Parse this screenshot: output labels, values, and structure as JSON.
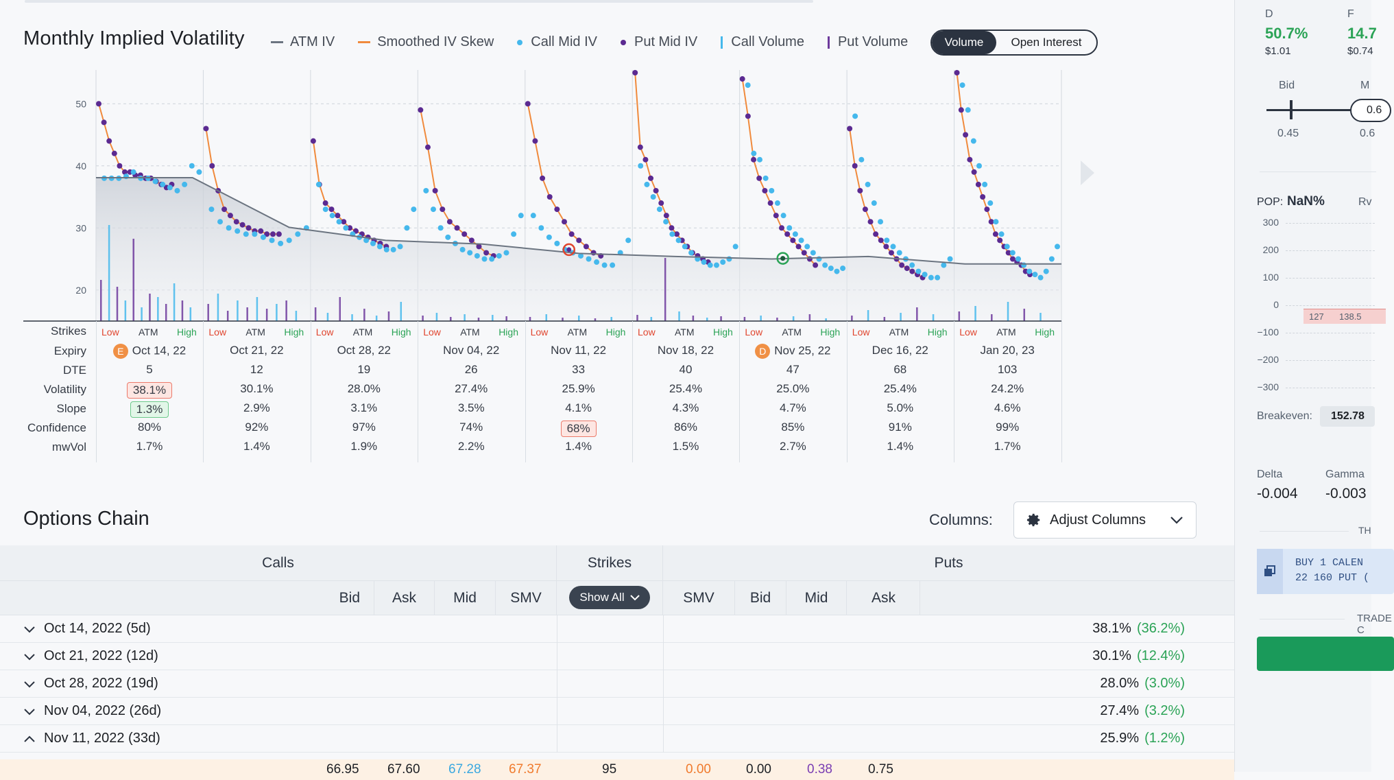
{
  "chart_header": {
    "title": "Monthly Implied Volatility",
    "legend": [
      {
        "label": "ATM IV",
        "kind": "line",
        "color": "#6b7480"
      },
      {
        "label": "Smoothed IV Skew",
        "kind": "line",
        "color": "#f08a3c"
      },
      {
        "label": "Call Mid IV",
        "kind": "dot",
        "color": "#45b8ec"
      },
      {
        "label": "Put Mid IV",
        "kind": "dot",
        "color": "#5b2a91"
      },
      {
        "label": "Call Volume",
        "kind": "bar",
        "color": "#45b8ec"
      },
      {
        "label": "Put Volume",
        "kind": "bar",
        "color": "#6d3a9c"
      }
    ],
    "toggle": {
      "volume": "Volume",
      "open_interest": "Open Interest",
      "selected": "Volume"
    }
  },
  "chart_data": {
    "type": "scatter",
    "y_ticks": [
      20,
      30,
      40,
      50
    ],
    "ylim": [
      15,
      55
    ],
    "grid": true,
    "expiries": [
      {
        "expiry": "Oct 14, 22",
        "atm_iv": 38.1,
        "call_iv": [
          38,
          38,
          38,
          38.3,
          39,
          38,
          38,
          37.5,
          37,
          36.5,
          36,
          37,
          40,
          39
        ],
        "put_iv": [
          50,
          47,
          44,
          42,
          40,
          39,
          39,
          38.5,
          38.5,
          38,
          38,
          37.5,
          37,
          36.5,
          37
        ]
      },
      {
        "expiry": "Oct 21, 22",
        "atm_iv": 30.1,
        "call_iv": [
          33,
          31,
          30,
          29.5,
          29,
          29,
          28.5,
          28,
          27.5,
          28,
          29,
          30
        ],
        "put_iv": [
          46,
          40,
          36,
          33,
          32,
          31,
          30.5,
          30,
          29.5,
          29.5,
          29,
          29,
          29
        ]
      },
      {
        "expiry": "Oct 28, 22",
        "atm_iv": 28.0,
        "call_iv": [
          37,
          33,
          32,
          31,
          30,
          29,
          28.5,
          28,
          27.5,
          27,
          26.5,
          26.5,
          27,
          30,
          33
        ],
        "put_iv": [
          44,
          37,
          34,
          33,
          32,
          31,
          30,
          29.5,
          29,
          28.5,
          28,
          27.5,
          27
        ]
      },
      {
        "expiry": "Nov 04, 22",
        "atm_iv": 27.4,
        "call_iv": [
          36,
          33,
          30,
          28.5,
          27.5,
          26.5,
          26,
          25.5,
          25,
          25,
          25.5,
          26,
          29,
          32
        ],
        "put_iv": [
          49,
          43,
          36,
          33,
          31,
          30,
          29,
          28,
          27,
          26,
          25.5
        ]
      },
      {
        "expiry": "Nov 11, 22",
        "atm_iv": 25.9,
        "call_iv": [
          32,
          30,
          28.5,
          27.5,
          26.5,
          26,
          25.5,
          25,
          24.5,
          24,
          24,
          26,
          28
        ],
        "put_iv": [
          50,
          44,
          38,
          35,
          33,
          31,
          29,
          28,
          27,
          26,
          25.5
        ]
      },
      {
        "expiry": "Nov 18, 22",
        "atm_iv": 25.4,
        "call_iv": [
          40,
          37,
          35,
          33,
          31,
          29,
          28,
          27,
          26,
          25,
          24.5,
          24,
          24,
          24.5,
          25,
          27
        ],
        "put_iv": [
          55,
          43,
          41,
          38,
          36,
          34,
          32,
          30,
          29,
          28,
          27,
          26,
          25.5,
          25,
          24.5
        ]
      },
      {
        "expiry": "Nov 25, 22",
        "atm_iv": 25.0,
        "call_iv": [
          53,
          42,
          41,
          38,
          36,
          34,
          32,
          30,
          29,
          28,
          27,
          26,
          25,
          24,
          23.5,
          23,
          23.5
        ],
        "put_iv": [
          54,
          48,
          41,
          38,
          36,
          34,
          32,
          30,
          29,
          28,
          27,
          26,
          25,
          24
        ]
      },
      {
        "expiry": "Dec 16, 22",
        "atm_iv": 25.4,
        "call_iv": [
          48,
          41,
          37,
          34,
          31,
          28,
          27,
          26,
          25,
          24,
          23,
          22.5,
          22,
          22,
          24,
          25
        ],
        "put_iv": [
          46,
          40,
          36,
          33,
          31,
          29,
          28,
          27,
          26,
          25,
          24,
          23.5,
          23,
          22.5,
          22
        ]
      },
      {
        "expiry": "Jan 20, 23",
        "atm_iv": 24.2,
        "call_iv": [
          53,
          49,
          44,
          40,
          37,
          34,
          31,
          29,
          27,
          26,
          25,
          24,
          23,
          22.5,
          22,
          23,
          25,
          27
        ],
        "put_iv": [
          55,
          49,
          45,
          41,
          39,
          37,
          35,
          33,
          31,
          29,
          28,
          27,
          26,
          25,
          24.5,
          24,
          23,
          22.5
        ]
      }
    ],
    "atm_line": [
      38.1,
      38.1,
      30.1,
      28.0,
      27.4,
      25.9,
      25.4,
      25.0,
      25.4,
      24.2,
      24.2
    ]
  },
  "table": {
    "row_labels": [
      "Strikes",
      "Expiry",
      "DTE",
      "Volatility",
      "Slope",
      "Confidence",
      "mwVol"
    ],
    "strike_labels": {
      "low": "Low",
      "atm": "ATM",
      "high": "High"
    },
    "columns": [
      {
        "expiry": "Oct 14, 22",
        "badge": "E",
        "dte": "5",
        "volatility": "38.1%",
        "slope": "1.3%",
        "confidence": "80%",
        "mwvol": "1.7%"
      },
      {
        "expiry": "Oct 21, 22",
        "badge": "",
        "dte": "12",
        "volatility": "30.1%",
        "slope": "2.9%",
        "confidence": "92%",
        "mwvol": "1.4%"
      },
      {
        "expiry": "Oct 28, 22",
        "badge": "",
        "dte": "19",
        "volatility": "28.0%",
        "slope": "3.1%",
        "confidence": "97%",
        "mwvol": "1.9%"
      },
      {
        "expiry": "Nov 04, 22",
        "badge": "",
        "dte": "26",
        "volatility": "27.4%",
        "slope": "3.5%",
        "confidence": "74%",
        "mwvol": "2.2%"
      },
      {
        "expiry": "Nov 11, 22",
        "badge": "",
        "dte": "33",
        "volatility": "25.9%",
        "slope": "4.1%",
        "confidence": "68%",
        "mwvol": "1.4%"
      },
      {
        "expiry": "Nov 18, 22",
        "badge": "",
        "dte": "40",
        "volatility": "25.4%",
        "slope": "4.3%",
        "confidence": "86%",
        "mwvol": "1.5%"
      },
      {
        "expiry": "Nov 25, 22",
        "badge": "D",
        "dte": "47",
        "volatility": "25.0%",
        "slope": "4.7%",
        "confidence": "85%",
        "mwvol": "2.7%"
      },
      {
        "expiry": "Dec 16, 22",
        "badge": "",
        "dte": "68",
        "volatility": "25.4%",
        "slope": "5.0%",
        "confidence": "91%",
        "mwvol": "1.4%"
      },
      {
        "expiry": "Jan 20, 23",
        "badge": "",
        "dte": "103",
        "volatility": "24.2%",
        "slope": "4.6%",
        "confidence": "99%",
        "mwvol": "1.7%"
      }
    ]
  },
  "options_chain": {
    "title": "Options Chain",
    "columns_label": "Columns:",
    "adjust_columns": "Adjust Columns",
    "headers": {
      "calls": "Calls",
      "strikes": "Strikes",
      "puts": "Puts"
    },
    "call_cols": [
      "Bid",
      "Ask",
      "Mid",
      "SMV"
    ],
    "put_cols": [
      "SMV",
      "Bid",
      "Mid",
      "Ask"
    ],
    "show_all": "Show All",
    "expirations": [
      {
        "label": "Oct 14, 2022 (5d)",
        "iv": "38.1%",
        "change": "(36.2%)",
        "expanded": false
      },
      {
        "label": "Oct 21, 2022 (12d)",
        "iv": "30.1%",
        "change": "(12.4%)",
        "expanded": false
      },
      {
        "label": "Oct 28, 2022 (19d)",
        "iv": "28.0%",
        "change": "(3.0%)",
        "expanded": false
      },
      {
        "label": "Nov 04, 2022 (26d)",
        "iv": "27.4%",
        "change": "(3.2%)",
        "expanded": false
      },
      {
        "label": "Nov 11, 2022 (33d)",
        "iv": "25.9%",
        "change": "(1.2%)",
        "expanded": true
      }
    ],
    "first_strike_row": {
      "call_bid": "66.95",
      "call_ask": "67.60",
      "call_mid": "67.28",
      "call_smv": "67.37",
      "strike": "95",
      "put_smv": "0.00",
      "put_bid": "0.00",
      "put_mid": "0.38",
      "put_ask": "0.75"
    }
  },
  "side_panel": {
    "d_label": "D",
    "d_value": "50.7%",
    "d_price": "$1.01",
    "f_label": "F",
    "f_value": "14.7",
    "f_price": "$0.74",
    "bid_label": "Bid",
    "bid_value": "0.45",
    "mid_label": "M",
    "mid_value": "0.6",
    "pop_label": "POP:",
    "pop_value": "NaN%",
    "rv_label": "Rv",
    "pl_ticks": [
      "300",
      "200",
      "100",
      "0",
      "−100",
      "−200",
      "−300"
    ],
    "strike_marks": [
      "127",
      "138.5"
    ],
    "breakeven_label": "Breakeven:",
    "breakeven_value": "152.78",
    "delta_label": "Delta",
    "delta_value": "-0.004",
    "gamma_label": "Gamma",
    "gamma_value": "-0.003",
    "th_label": "TH",
    "order_line1": "BUY 1 CALEN",
    "order_line2": "22 160 PUT (",
    "trade_label": "TRADE C"
  }
}
